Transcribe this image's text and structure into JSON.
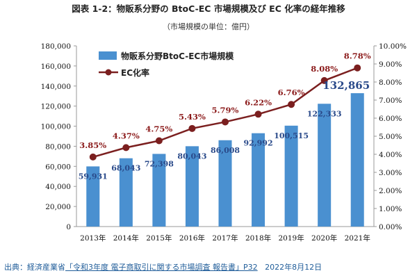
{
  "chart_data": {
    "type": "bar",
    "title": "図表 1-2：物販系分野の BtoC-EC 市場規模及び EC 化率の経年推移",
    "subtitle": "（市場規模の単位：億円）",
    "categories": [
      "2013年",
      "2014年",
      "2015年",
      "2016年",
      "2017年",
      "2018年",
      "2019年",
      "2020年",
      "2021年"
    ],
    "series": [
      {
        "name": "物販系分野BtoC-EC市場規模",
        "type": "bar",
        "axis": "left",
        "values": [
          59931,
          68043,
          72398,
          80043,
          86008,
          92992,
          100515,
          122333,
          132865
        ],
        "labels": [
          "59,931",
          "68,043",
          "72,398",
          "80,043",
          "86,008",
          "92,992",
          "100,515",
          "122,333",
          "132,865"
        ],
        "color": "#4a90d0"
      },
      {
        "name": "EC化率",
        "type": "line",
        "axis": "right",
        "values": [
          3.85,
          4.37,
          4.75,
          5.43,
          5.79,
          6.22,
          6.76,
          8.08,
          8.78
        ],
        "labels": [
          "3.85%",
          "4.37%",
          "4.75%",
          "5.43%",
          "5.79%",
          "6.22%",
          "6.76%",
          "8.08%",
          "8.78%"
        ],
        "color": "#7b1f1f"
      }
    ],
    "y_left": {
      "ylim": [
        0,
        180000
      ],
      "ticks": [
        0,
        20000,
        40000,
        60000,
        80000,
        100000,
        120000,
        140000,
        160000,
        180000
      ],
      "tick_labels": [
        "0",
        "20,000",
        "40,000",
        "60,000",
        "80,000",
        "100,000",
        "120,000",
        "140,000",
        "160,000",
        "180,000"
      ]
    },
    "y_right": {
      "ylim": [
        0,
        10
      ],
      "ticks": [
        0,
        1,
        2,
        3,
        4,
        5,
        6,
        7,
        8,
        9,
        10
      ],
      "tick_labels": [
        "0.00%",
        "1.00%",
        "2.00%",
        "3.00%",
        "4.00%",
        "5.00%",
        "6.00%",
        "7.00%",
        "8.00%",
        "9.00%",
        "10.00%"
      ]
    },
    "grid": false,
    "legend": "top-left"
  },
  "source": {
    "prefix": "出典：経済産業省",
    "link": "「令和3年度 電子商取引に関する市場調査 報告書」P32",
    "date": "2022年8月12日"
  }
}
